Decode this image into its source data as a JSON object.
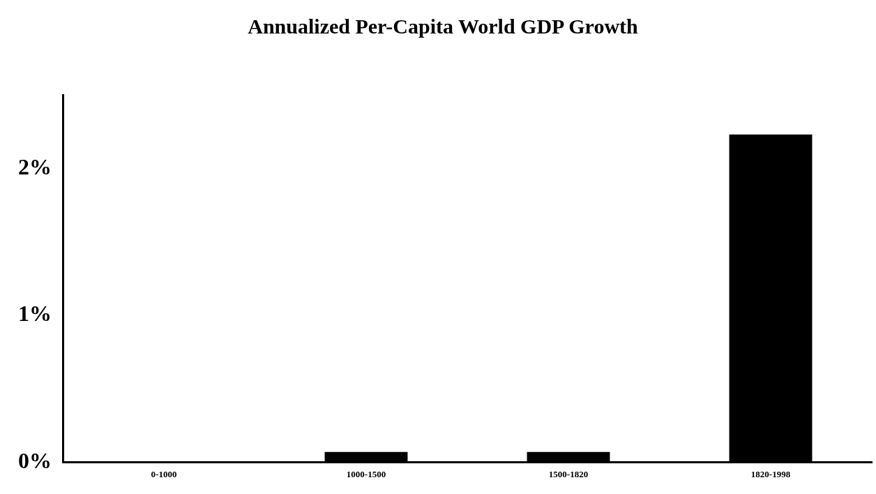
{
  "chart_data": {
    "type": "bar",
    "title": "Annualized Per-Capita World GDP Growth",
    "categories": [
      "0-1000",
      "1000-1500",
      "1500-1820",
      "1820-1998"
    ],
    "values": [
      0,
      0.07,
      0.07,
      2.23
    ],
    "color": "#000000",
    "ylim": [
      0,
      2.5
    ],
    "yticks": [
      {
        "value": 0,
        "label": "0%"
      },
      {
        "value": 1,
        "label": "1%"
      },
      {
        "value": 2,
        "label": "2%"
      }
    ],
    "grid": false,
    "legend": false
  }
}
